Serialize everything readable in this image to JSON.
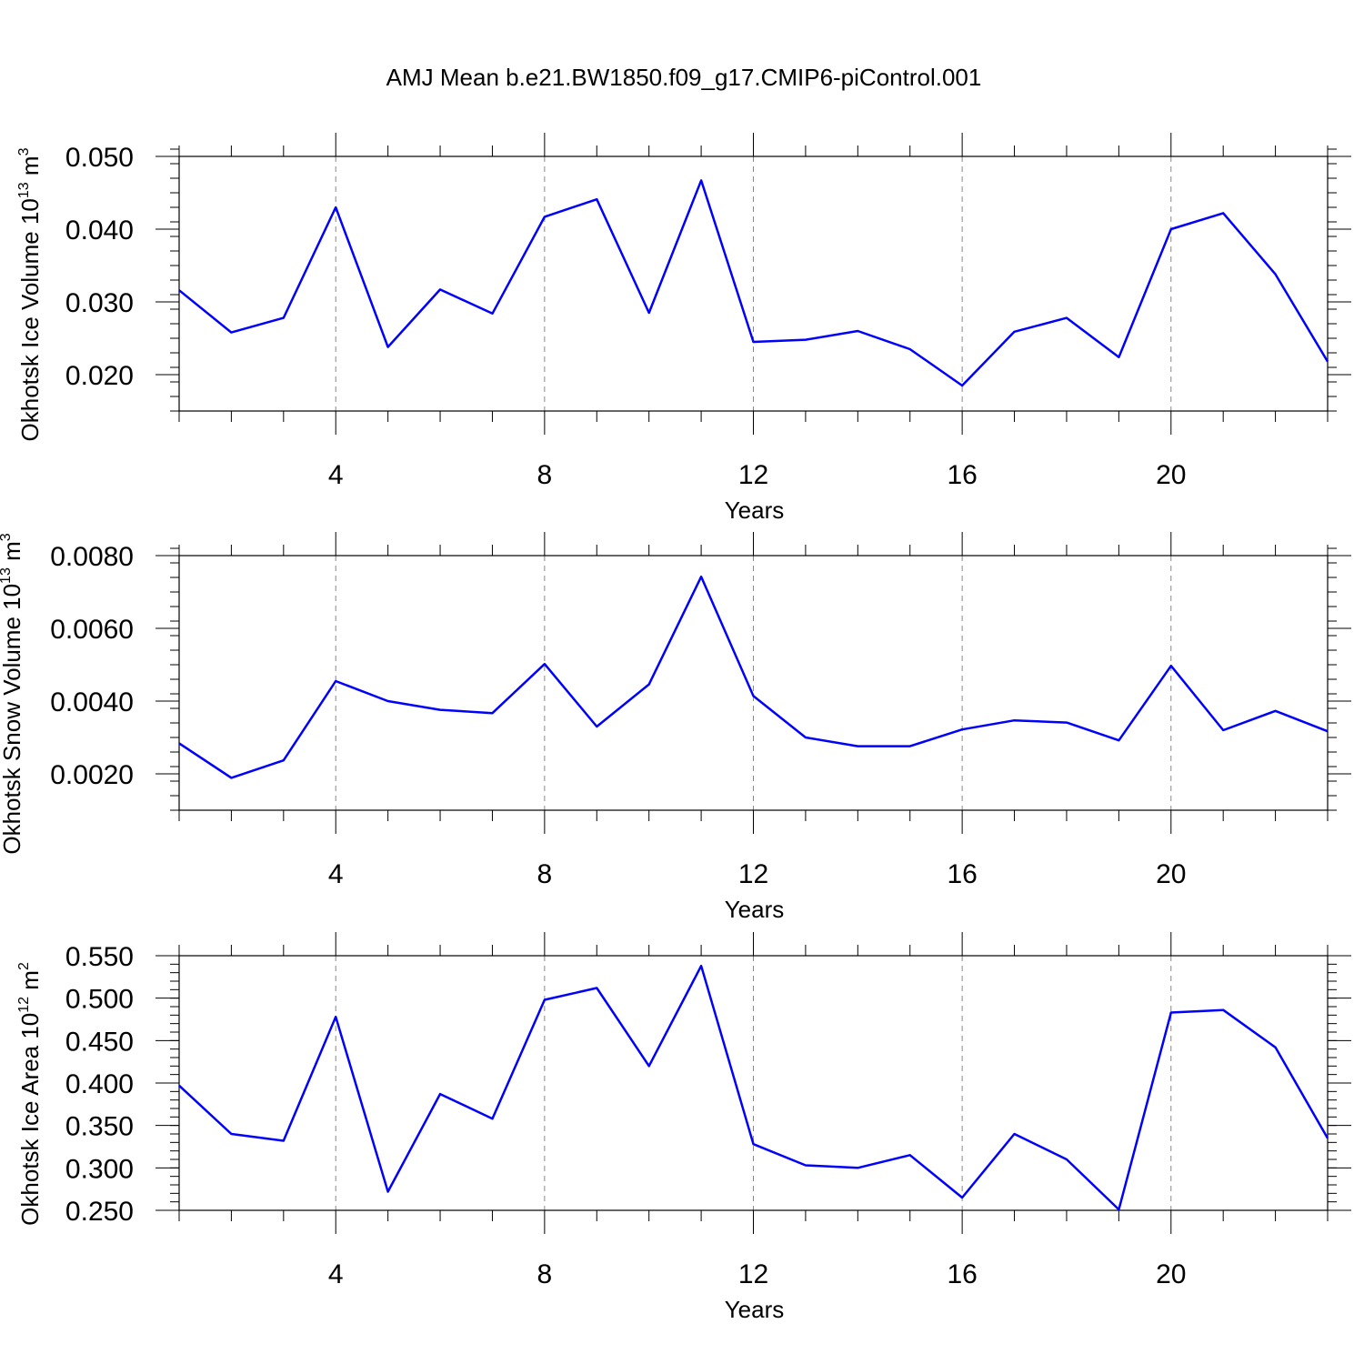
{
  "title": "AMJ Mean b.e21.BW1850.f09_g17.CMIP6-piControl.001",
  "colors": {
    "line": "#0000ff",
    "axis": "#000000",
    "grid": "#888888"
  },
  "chart_data": [
    {
      "type": "line",
      "ylabel": "Okhotsk Ice Volume",
      "yunit_base": "10",
      "yunit_exp": "13",
      "yunit_tail": "m",
      "yunit_tail_exp": "3",
      "xlabel": "Years",
      "xlim": [
        1,
        23
      ],
      "ylim": [
        0.015,
        0.05
      ],
      "ytick_values": [
        0.02,
        0.03,
        0.04,
        0.05
      ],
      "ytick_labels": [
        "0.020",
        "0.030",
        "0.040",
        "0.050"
      ],
      "yminor_step": 0.002,
      "xtick_values": [
        4,
        8,
        12,
        16,
        20
      ],
      "xtick_labels": [
        "4",
        "8",
        "12",
        "16",
        "20"
      ],
      "grid": "dashed vertical at major x ticks",
      "x": [
        1,
        2,
        3,
        4,
        5,
        6,
        7,
        8,
        9,
        10,
        11,
        12,
        13,
        14,
        15,
        16,
        17,
        18,
        19,
        20,
        21,
        22,
        23
      ],
      "values": [
        0.0316,
        0.0258,
        0.0278,
        0.043,
        0.0238,
        0.0317,
        0.0284,
        0.0417,
        0.0441,
        0.0285,
        0.0467,
        0.0245,
        0.0248,
        0.026,
        0.0235,
        0.0185,
        0.0259,
        0.0278,
        0.0224,
        0.04,
        0.0422,
        0.0338,
        0.0218
      ]
    },
    {
      "type": "line",
      "ylabel": "Okhotsk Snow Volume",
      "yunit_base": "10",
      "yunit_exp": "13",
      "yunit_tail": "m",
      "yunit_tail_exp": "3",
      "xlabel": "Years",
      "xlim": [
        1,
        23
      ],
      "ylim": [
        0.001,
        0.008
      ],
      "ytick_values": [
        0.002,
        0.004,
        0.006,
        0.008
      ],
      "ytick_labels": [
        "0.0020",
        "0.0040",
        "0.0060",
        "0.0080"
      ],
      "yminor_step": 0.0004,
      "xtick_values": [
        4,
        8,
        12,
        16,
        20
      ],
      "xtick_labels": [
        "4",
        "8",
        "12",
        "16",
        "20"
      ],
      "grid": "dashed vertical at major x ticks",
      "x": [
        1,
        2,
        3,
        4,
        5,
        6,
        7,
        8,
        9,
        10,
        11,
        12,
        13,
        14,
        15,
        16,
        17,
        18,
        19,
        20,
        21,
        22,
        23
      ],
      "values": [
        0.00284,
        0.00189,
        0.00237,
        0.00455,
        0.004,
        0.00376,
        0.00367,
        0.00502,
        0.0033,
        0.00446,
        0.00742,
        0.00414,
        0.003,
        0.00276,
        0.00276,
        0.00322,
        0.00347,
        0.00341,
        0.00292,
        0.00497,
        0.0032,
        0.00373,
        0.00317
      ]
    },
    {
      "type": "line",
      "ylabel": "Okhotsk Ice Area",
      "yunit_base": "10",
      "yunit_exp": "12",
      "yunit_tail": "m",
      "yunit_tail_exp": "2",
      "xlabel": "Years",
      "xlim": [
        1,
        23
      ],
      "ylim": [
        0.25,
        0.55
      ],
      "ytick_values": [
        0.25,
        0.3,
        0.35,
        0.4,
        0.45,
        0.5,
        0.55
      ],
      "ytick_labels": [
        "0.250",
        "0.300",
        "0.350",
        "0.400",
        "0.450",
        "0.500",
        "0.550"
      ],
      "yminor_step": 0.01,
      "xtick_values": [
        4,
        8,
        12,
        16,
        20
      ],
      "xtick_labels": [
        "4",
        "8",
        "12",
        "16",
        "20"
      ],
      "grid": "dashed vertical at major x ticks",
      "x": [
        1,
        2,
        3,
        4,
        5,
        6,
        7,
        8,
        9,
        10,
        11,
        12,
        13,
        14,
        15,
        16,
        17,
        18,
        19,
        20,
        21,
        22,
        23
      ],
      "values": [
        0.397,
        0.34,
        0.332,
        0.478,
        0.272,
        0.387,
        0.358,
        0.498,
        0.512,
        0.42,
        0.538,
        0.328,
        0.303,
        0.3,
        0.315,
        0.265,
        0.34,
        0.31,
        0.251,
        0.483,
        0.486,
        0.442,
        0.335
      ]
    }
  ]
}
